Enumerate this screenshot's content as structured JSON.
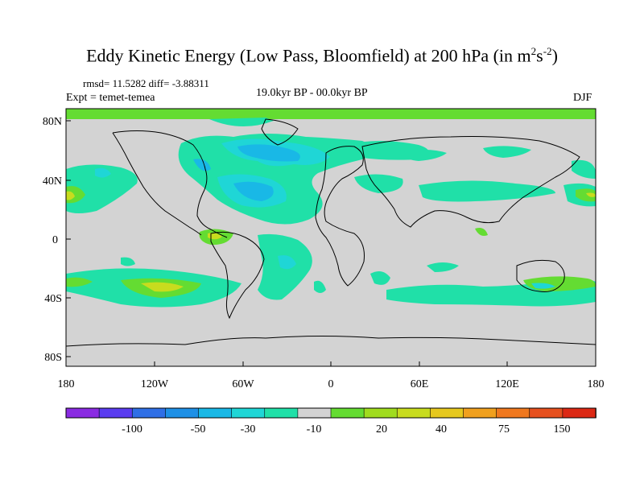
{
  "title": {
    "main": "Eddy Kinetic Energy (Low Pass, Bloomfield) at 200 hPa (in m",
    "sup1": "2",
    "mid": "s",
    "sup2": "-2",
    "end": ")"
  },
  "stats": "rmsd= 11.5282 diff= -3.88311",
  "expt": "Expt = temet-temea",
  "period": "19.0kyr BP - 00.0kyr BP",
  "season": "DJF",
  "axes": {
    "y_ticks": [
      "80N",
      "40N",
      "0",
      "40S",
      "80S"
    ],
    "x_ticks": [
      "180",
      "120W",
      "60W",
      "0",
      "60E",
      "120E",
      "180"
    ]
  },
  "colorbar": {
    "colors": [
      "#8a2be2",
      "#5a3cf0",
      "#2f6fe6",
      "#1e90e6",
      "#19b8e6",
      "#1fd6d6",
      "#20e0a8",
      "#d3d3d3",
      "#64dc32",
      "#a0dc1e",
      "#c8dc1e",
      "#e6c81e",
      "#f0a01e",
      "#f0781e",
      "#e6501e",
      "#dc2814"
    ],
    "labels": [
      "-100",
      "-50",
      "-30",
      "-10",
      "20",
      "40",
      "75",
      "150"
    ]
  },
  "colors": {
    "land_ocean_base": "#d3d3d3",
    "cyan_green": "#20e0a8",
    "aqua": "#1fd6d6",
    "sky": "#19b8e6",
    "blue": "#1e90e6",
    "green": "#64dc32",
    "yellow_green": "#c8dc1e"
  }
}
